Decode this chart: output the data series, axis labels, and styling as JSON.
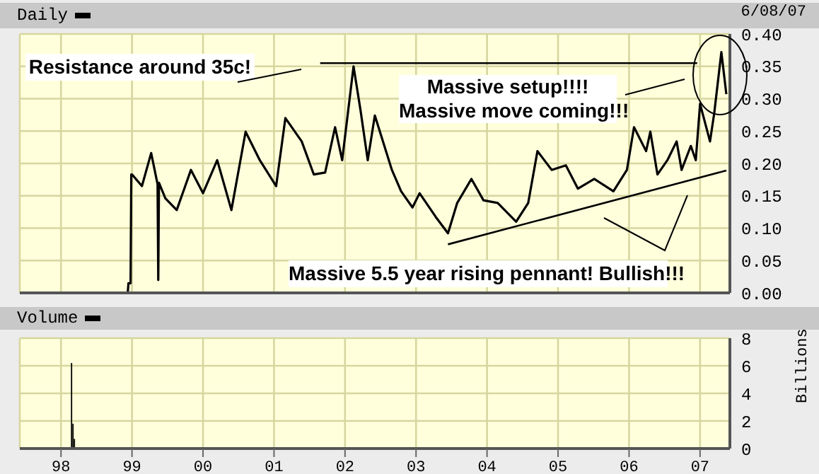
{
  "chart_data": [
    {
      "type": "line",
      "title": "Daily",
      "annotations": [
        "Resistance around 35c!",
        "Massive setup!!!!",
        "Massive move coming!!!",
        "Massive 5.5 year rising pennant! Bullish!!!",
        "6/08/07"
      ],
      "x": [
        1998.14,
        1998.94,
        1998.95,
        1998.98,
        1998.99,
        1999.0,
        1999.14,
        1999.27,
        1999.36,
        1999.37,
        1999.38,
        1999.47,
        1999.63,
        1999.83,
        2000.0,
        2000.2,
        2000.4,
        2000.6,
        2000.8,
        2001.03,
        2001.16,
        2001.39,
        2001.56,
        2001.72,
        2001.86,
        2001.96,
        2002.12,
        2002.22,
        2002.32,
        2002.42,
        2002.66,
        2002.79,
        2002.95,
        2003.05,
        2003.28,
        2003.45,
        2003.58,
        2003.78,
        2003.95,
        2004.15,
        2004.41,
        2004.58,
        2004.71,
        2004.91,
        2005.11,
        2005.28,
        2005.51,
        2005.78,
        2005.97,
        2006.07,
        2006.24,
        2006.3,
        2006.4,
        2006.54,
        2006.67,
        2006.74,
        2006.87,
        2006.94,
        2007.0,
        2007.14,
        2007.2,
        2007.3,
        2007.37
      ],
      "series": [
        {
          "color": "#000000",
          "values": [
            0.0,
            0.0,
            0.015,
            0.015,
            0.183,
            0.183,
            0.165,
            0.216,
            0.168,
            0.02,
            0.17,
            0.146,
            0.128,
            0.19,
            0.154,
            0.205,
            0.128,
            0.249,
            0.205,
            0.165,
            0.27,
            0.234,
            0.183,
            0.186,
            0.256,
            0.205,
            0.35,
            0.281,
            0.205,
            0.274,
            0.19,
            0.157,
            0.132,
            0.154,
            0.117,
            0.092,
            0.139,
            0.176,
            0.143,
            0.139,
            0.11,
            0.139,
            0.219,
            0.19,
            0.197,
            0.161,
            0.176,
            0.157,
            0.19,
            0.256,
            0.219,
            0.249,
            0.183,
            0.205,
            0.234,
            0.19,
            0.227,
            0.205,
            0.292,
            0.234,
            0.278,
            0.372,
            0.307
          ]
        },
        {
          "type": "line",
          "color": "#000000",
          "x": [
            2001.65,
            2006.96
          ],
          "values": [
            0.355,
            0.355
          ]
        },
        {
          "type": "line",
          "color": "#000000",
          "x": [
            2003.45,
            2007.37
          ],
          "values": [
            0.075,
            0.189
          ]
        }
      ],
      "xlim": [
        1997.42,
        2007.42
      ],
      "xticks": [
        1998,
        1999,
        2000,
        2001,
        2002,
        2003,
        2004,
        2005,
        2006,
        2007
      ],
      "ylim": [
        0,
        0.4
      ],
      "yticks": [
        {
          "value": 0,
          "label": "0.00"
        },
        {
          "value": 0.05,
          "label": "0.05"
        },
        {
          "value": 0.1,
          "label": "0.10"
        },
        {
          "value": 0.15,
          "label": "0.15"
        },
        {
          "value": 0.2,
          "label": "0.20"
        },
        {
          "value": 0.25,
          "label": "0.25"
        },
        {
          "value": 0.3,
          "label": "0.30"
        },
        {
          "value": 0.35,
          "label": "0.35"
        },
        {
          "value": 0.4,
          "label": "0.40"
        }
      ],
      "grid": true,
      "tick_labels": "y"
    },
    {
      "type": "bar",
      "title": "Volume",
      "ylabel": "Billions",
      "color": "#000000",
      "x": [
        1998.15,
        1998.17,
        1998.19
      ],
      "values": [
        6.2,
        1.8,
        0.7
      ],
      "xlim": [
        1997.42,
        2007.42
      ],
      "xticks": [
        {
          "value": 1998,
          "label": "98"
        },
        {
          "value": 1999,
          "label": "99"
        },
        {
          "value": 2000,
          "label": "00"
        },
        {
          "value": 2001,
          "label": "01"
        },
        {
          "value": 2002,
          "label": "02"
        },
        {
          "value": 2003,
          "label": "03"
        },
        {
          "value": 2004,
          "label": "04"
        },
        {
          "value": 2005,
          "label": "05"
        },
        {
          "value": 2006,
          "label": "06"
        },
        {
          "value": 2007,
          "label": "07"
        }
      ],
      "ylim": [
        0,
        8
      ],
      "yticks": [
        0,
        2,
        4,
        6,
        8
      ],
      "grid": true
    }
  ]
}
